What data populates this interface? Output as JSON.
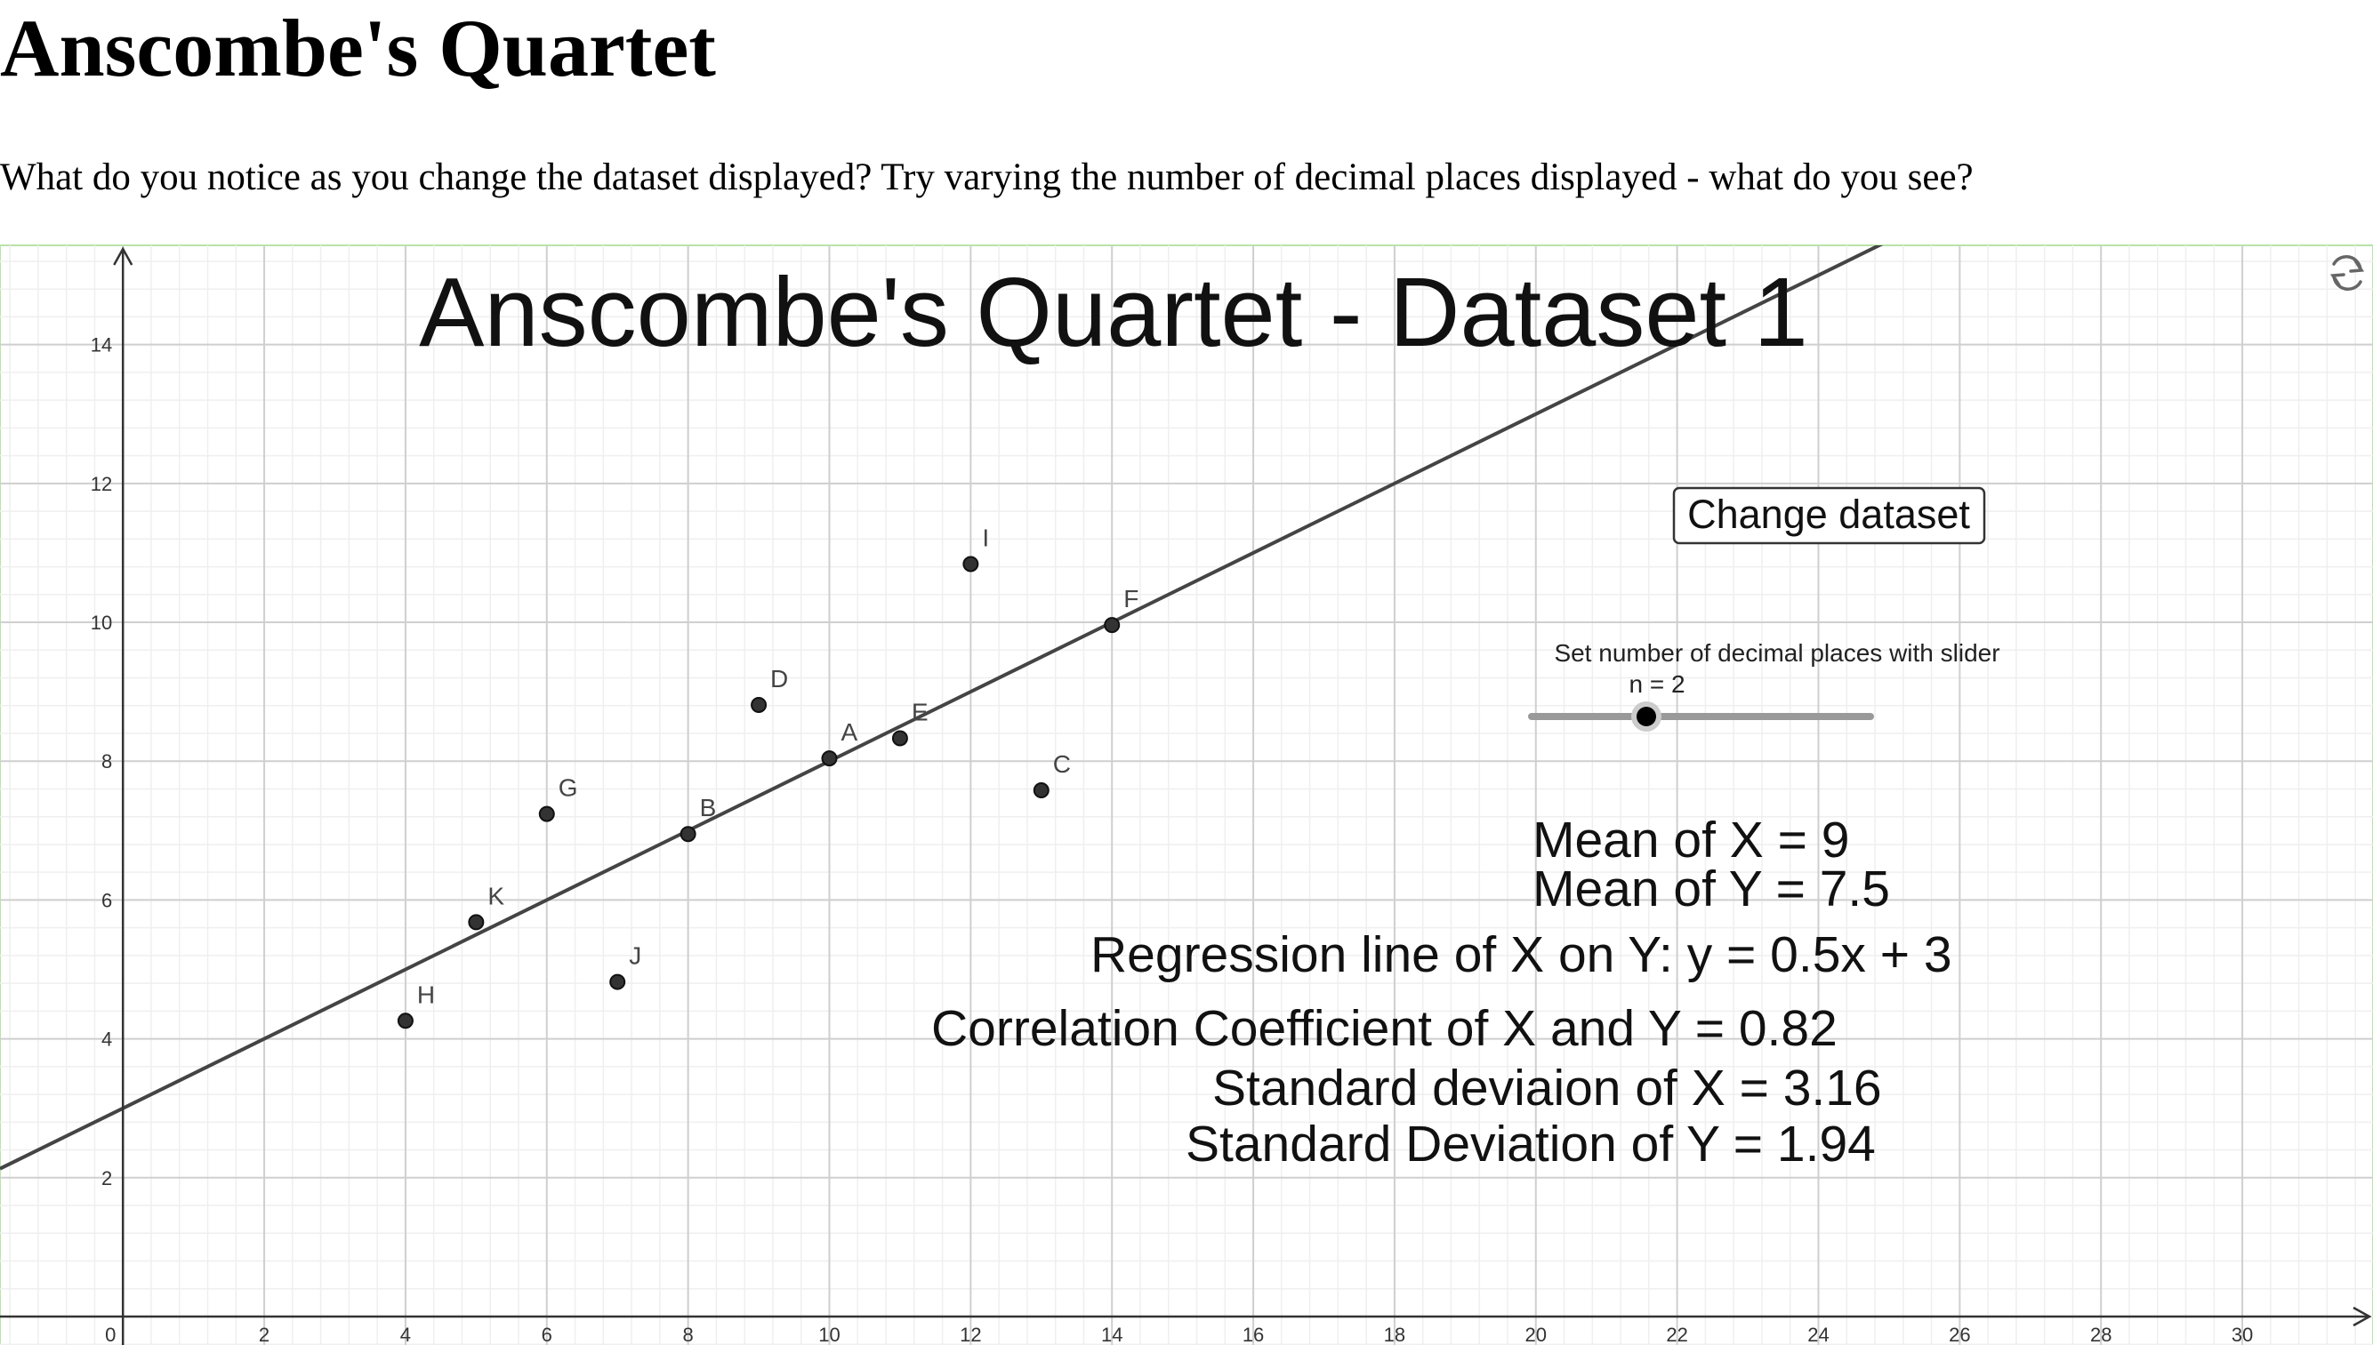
{
  "page": {
    "title": "Anscombe's Quartet",
    "prompt": "What do you notice as you change the dataset displayed? Try varying the number of decimal places displayed - what do you see?"
  },
  "chart_data": {
    "type": "scatter",
    "title": "Anscombe's Quartet - Dataset 1",
    "labels": [
      "A",
      "B",
      "C",
      "D",
      "E",
      "F",
      "G",
      "H",
      "I",
      "J",
      "K"
    ],
    "x": [
      10,
      8,
      13,
      9,
      11,
      14,
      6,
      4,
      12,
      7,
      5
    ],
    "values": [
      8.04,
      6.95,
      7.58,
      8.81,
      8.33,
      9.96,
      7.24,
      4.26,
      10.84,
      4.82,
      5.68
    ],
    "color": "#333333",
    "regression": {
      "slope": 0.5,
      "intercept": 3
    },
    "xlim": [
      -1.74,
      31.85
    ],
    "ylim": [
      -0.41,
      15.43
    ],
    "xticks": [
      0,
      2,
      4,
      6,
      8,
      10,
      12,
      14,
      16,
      18,
      20,
      22,
      24,
      26,
      28,
      30
    ],
    "yticks": [
      2,
      4,
      6,
      8,
      10,
      12,
      14
    ],
    "grid": true,
    "button": "Change dataset",
    "slider_caption": "Set number of decimal places with slider",
    "slider_label": "n = 2",
    "stats": [
      "Mean of X = 9",
      "Mean of Y = 7.5",
      "Regression line of X on Y: y = 0.5x + 3",
      "Correlation Coefficient of X and Y = 0.82",
      "Standard deviaion of X = 3.16",
      "Standard Deviation of Y = 1.94"
    ]
  }
}
